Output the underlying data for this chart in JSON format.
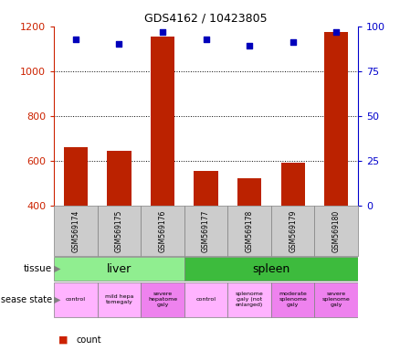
{
  "title": "GDS4162 / 10423805",
  "samples": [
    "GSM569174",
    "GSM569175",
    "GSM569176",
    "GSM569177",
    "GSM569178",
    "GSM569179",
    "GSM569180"
  ],
  "counts": [
    660,
    645,
    1155,
    555,
    520,
    590,
    1175
  ],
  "percentiles": [
    93,
    90,
    97,
    93,
    89,
    91,
    97
  ],
  "ylim_left": [
    400,
    1200
  ],
  "ylim_right": [
    0,
    100
  ],
  "yticks_left": [
    400,
    600,
    800,
    1000,
    1200
  ],
  "yticks_right": [
    0,
    25,
    50,
    75,
    100
  ],
  "tissue_groups": [
    {
      "label": "liver",
      "start": 0,
      "end": 3,
      "color": "#90ee90"
    },
    {
      "label": "spleen",
      "start": 3,
      "end": 7,
      "color": "#3dbb3d"
    }
  ],
  "disease_states": [
    {
      "label": "control",
      "col": 0,
      "color": "#ffb3ff"
    },
    {
      "label": "mild hepa\ntomegaly",
      "col": 1,
      "color": "#ffb3ff"
    },
    {
      "label": "severe\nhepatome\ngaly",
      "col": 2,
      "color": "#ee82ee"
    },
    {
      "label": "control",
      "col": 3,
      "color": "#ffb3ff"
    },
    {
      "label": "splenome\ngaly (not\nenlarged)",
      "col": 4,
      "color": "#ffb3ff"
    },
    {
      "label": "moderate\nsplenome\ngaly",
      "col": 5,
      "color": "#ee82ee"
    },
    {
      "label": "severe\nsplenome\ngaly",
      "col": 6,
      "color": "#ee82ee"
    }
  ],
  "bar_color": "#bb2200",
  "dot_color": "#0000bb",
  "left_axis_color": "#cc2200",
  "right_axis_color": "#0000cc",
  "background_color": "#ffffff",
  "sample_label_bg": "#cccccc",
  "grid_color": "#000000",
  "legend_count_color": "#cc2200",
  "legend_pct_color": "#0000cc"
}
